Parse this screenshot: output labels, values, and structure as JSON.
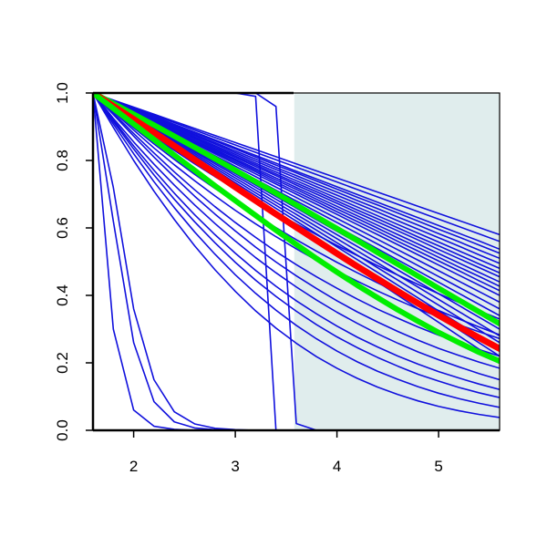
{
  "chart_data": {
    "type": "line",
    "title": "",
    "xlabel": "",
    "ylabel": "",
    "xlim": [
      1.6,
      5.6
    ],
    "ylim": [
      0.0,
      1.0
    ],
    "x_ticks": [
      2,
      3,
      4,
      5
    ],
    "x_tick_labels": [
      "2",
      "3",
      "4",
      "5"
    ],
    "y_ticks": [
      0.0,
      0.2,
      0.4,
      0.6,
      0.8,
      1.0
    ],
    "y_tick_labels": [
      "0.0",
      "0.2",
      "0.4",
      "0.6",
      "0.8",
      "1.0"
    ],
    "grid": false,
    "shaded_region": {
      "x_from": 3.58,
      "x_to": 5.6,
      "color": "#e0eded"
    },
    "colors": {
      "sample_curves": "#1010dd",
      "central_curve": "#ff0000",
      "band_curves": "#00ee00",
      "axis": "#000000"
    },
    "x": [
      1.6,
      1.8,
      2.0,
      2.2,
      2.4,
      2.6,
      2.8,
      3.0,
      3.2,
      3.4,
      3.6,
      3.8,
      4.0,
      4.2,
      4.4,
      4.6,
      4.8,
      5.0,
      5.2,
      5.4,
      5.6
    ],
    "series": [
      {
        "role": "sample",
        "values": [
          1.0,
          0.979,
          0.958,
          0.937,
          0.916,
          0.895,
          0.874,
          0.853,
          0.832,
          0.811,
          0.79,
          0.769,
          0.748,
          0.727,
          0.706,
          0.685,
          0.664,
          0.643,
          0.622,
          0.601,
          0.58
        ]
      },
      {
        "role": "sample",
        "values": [
          1.0,
          0.978,
          0.956,
          0.934,
          0.912,
          0.89,
          0.868,
          0.846,
          0.824,
          0.802,
          0.78,
          0.758,
          0.736,
          0.714,
          0.692,
          0.67,
          0.648,
          0.626,
          0.604,
          0.582,
          0.56
        ]
      },
      {
        "role": "sample",
        "values": [
          1.0,
          0.977,
          0.954,
          0.931,
          0.907,
          0.884,
          0.861,
          0.838,
          0.815,
          0.792,
          0.768,
          0.745,
          0.722,
          0.699,
          0.676,
          0.653,
          0.63,
          0.607,
          0.584,
          0.561,
          0.537
        ]
      },
      {
        "role": "sample",
        "values": [
          1.0,
          0.976,
          0.953,
          0.929,
          0.905,
          0.881,
          0.858,
          0.834,
          0.81,
          0.786,
          0.763,
          0.739,
          0.715,
          0.691,
          0.668,
          0.644,
          0.62,
          0.596,
          0.573,
          0.549,
          0.525
        ]
      },
      {
        "role": "sample",
        "values": [
          1.0,
          0.975,
          0.951,
          0.926,
          0.902,
          0.877,
          0.853,
          0.828,
          0.804,
          0.779,
          0.755,
          0.73,
          0.706,
          0.681,
          0.657,
          0.632,
          0.608,
          0.583,
          0.559,
          0.534,
          0.51
        ]
      },
      {
        "role": "sample",
        "values": [
          1.0,
          0.975,
          0.95,
          0.924,
          0.899,
          0.874,
          0.849,
          0.823,
          0.798,
          0.773,
          0.748,
          0.722,
          0.697,
          0.672,
          0.647,
          0.621,
          0.596,
          0.571,
          0.546,
          0.52,
          0.495
        ]
      },
      {
        "role": "sample",
        "values": [
          1.0,
          0.974,
          0.948,
          0.922,
          0.896,
          0.87,
          0.844,
          0.818,
          0.792,
          0.766,
          0.74,
          0.714,
          0.688,
          0.662,
          0.636,
          0.61,
          0.584,
          0.558,
          0.532,
          0.506,
          0.48
        ]
      },
      {
        "role": "sample",
        "values": [
          1.0,
          0.973,
          0.947,
          0.92,
          0.893,
          0.867,
          0.84,
          0.813,
          0.787,
          0.76,
          0.733,
          0.707,
          0.68,
          0.653,
          0.627,
          0.6,
          0.573,
          0.547,
          0.52,
          0.493,
          0.467
        ]
      },
      {
        "role": "sample",
        "values": [
          1.0,
          0.973,
          0.945,
          0.918,
          0.891,
          0.864,
          0.836,
          0.809,
          0.782,
          0.755,
          0.727,
          0.7,
          0.673,
          0.645,
          0.618,
          0.591,
          0.564,
          0.536,
          0.509,
          0.482,
          0.455
        ]
      },
      {
        "role": "sample",
        "values": [
          1.0,
          0.972,
          0.944,
          0.916,
          0.888,
          0.86,
          0.832,
          0.804,
          0.776,
          0.748,
          0.72,
          0.692,
          0.664,
          0.636,
          0.608,
          0.58,
          0.552,
          0.524,
          0.496,
          0.468,
          0.44
        ]
      },
      {
        "role": "sample",
        "values": [
          1.0,
          0.971,
          0.943,
          0.914,
          0.885,
          0.857,
          0.828,
          0.8,
          0.771,
          0.742,
          0.714,
          0.685,
          0.656,
          0.628,
          0.599,
          0.57,
          0.542,
          0.513,
          0.484,
          0.456,
          0.427
        ]
      },
      {
        "role": "sample",
        "values": [
          1.0,
          0.971,
          0.941,
          0.912,
          0.883,
          0.853,
          0.824,
          0.795,
          0.766,
          0.736,
          0.707,
          0.678,
          0.648,
          0.619,
          0.59,
          0.56,
          0.531,
          0.502,
          0.473,
          0.443,
          0.414
        ]
      },
      {
        "role": "sample",
        "values": [
          1.0,
          0.97,
          0.94,
          0.91,
          0.88,
          0.85,
          0.82,
          0.79,
          0.76,
          0.73,
          0.7,
          0.67,
          0.64,
          0.61,
          0.58,
          0.55,
          0.52,
          0.49,
          0.46,
          0.43,
          0.4
        ]
      },
      {
        "role": "sample",
        "values": [
          1.0,
          0.969,
          0.938,
          0.907,
          0.876,
          0.845,
          0.814,
          0.783,
          0.752,
          0.721,
          0.69,
          0.659,
          0.628,
          0.597,
          0.566,
          0.535,
          0.504,
          0.473,
          0.442,
          0.411,
          0.38
        ]
      },
      {
        "role": "sample",
        "values": [
          1.0,
          0.968,
          0.936,
          0.904,
          0.872,
          0.84,
          0.808,
          0.776,
          0.744,
          0.712,
          0.68,
          0.648,
          0.616,
          0.584,
          0.552,
          0.52,
          0.488,
          0.456,
          0.424,
          0.392,
          0.36
        ]
      },
      {
        "role": "sample",
        "values": [
          1.0,
          0.967,
          0.934,
          0.901,
          0.868,
          0.835,
          0.802,
          0.769,
          0.736,
          0.703,
          0.67,
          0.637,
          0.604,
          0.571,
          0.538,
          0.505,
          0.472,
          0.439,
          0.406,
          0.373,
          0.34
        ]
      },
      {
        "role": "sample",
        "values": [
          1.0,
          0.966,
          0.932,
          0.898,
          0.863,
          0.829,
          0.795,
          0.761,
          0.727,
          0.693,
          0.659,
          0.624,
          0.59,
          0.556,
          0.522,
          0.488,
          0.454,
          0.42,
          0.385,
          0.351,
          0.317
        ]
      },
      {
        "role": "sample",
        "values": [
          1.0,
          0.965,
          0.93,
          0.895,
          0.86,
          0.825,
          0.79,
          0.755,
          0.72,
          0.685,
          0.65,
          0.615,
          0.58,
          0.545,
          0.51,
          0.475,
          0.44,
          0.405,
          0.37,
          0.335,
          0.3
        ]
      },
      {
        "role": "sample",
        "values": [
          1.0,
          0.964,
          0.928,
          0.892,
          0.856,
          0.82,
          0.784,
          0.748,
          0.712,
          0.676,
          0.64,
          0.604,
          0.568,
          0.532,
          0.496,
          0.46,
          0.424,
          0.388,
          0.352,
          0.316,
          0.28
        ]
      },
      {
        "role": "sample",
        "values": [
          1.0,
          0.963,
          0.926,
          0.889,
          0.852,
          0.815,
          0.778,
          0.741,
          0.704,
          0.667,
          0.63,
          0.593,
          0.556,
          0.519,
          0.482,
          0.445,
          0.408,
          0.371,
          0.334,
          0.297,
          0.26
        ]
      },
      {
        "role": "sample",
        "values": [
          1.0,
          0.962,
          0.924,
          0.886,
          0.848,
          0.81,
          0.772,
          0.734,
          0.696,
          0.658,
          0.62,
          0.582,
          0.544,
          0.506,
          0.468,
          0.43,
          0.392,
          0.354,
          0.316,
          0.278,
          0.24
        ]
      },
      {
        "role": "sample",
        "values": [
          1.0,
          0.961,
          0.922,
          0.883,
          0.844,
          0.805,
          0.766,
          0.727,
          0.688,
          0.649,
          0.61,
          0.571,
          0.532,
          0.493,
          0.454,
          0.415,
          0.376,
          0.337,
          0.298,
          0.259,
          0.22
        ]
      },
      {
        "role": "sample",
        "values": [
          1.0,
          0.96,
          0.92,
          0.88,
          0.84,
          0.8,
          0.76,
          0.72,
          0.68,
          0.64,
          0.6,
          0.56,
          0.52,
          0.48,
          0.44,
          0.4,
          0.36,
          0.32,
          0.28,
          0.24,
          0.2
        ]
      },
      {
        "role": "sample",
        "values": [
          1.0,
          0.955,
          0.911,
          0.869,
          0.83,
          0.79,
          0.752,
          0.716,
          0.68,
          0.646,
          0.612,
          0.58,
          0.548,
          0.518,
          0.488,
          0.46,
          0.432,
          0.405,
          0.379,
          0.354,
          0.33
        ]
      },
      {
        "role": "sample",
        "values": [
          1.0,
          0.948,
          0.897,
          0.849,
          0.803,
          0.759,
          0.717,
          0.677,
          0.638,
          0.601,
          0.565,
          0.531,
          0.498,
          0.467,
          0.437,
          0.408,
          0.381,
          0.355,
          0.33,
          0.306,
          0.283
        ]
      },
      {
        "role": "sample",
        "values": [
          1.0,
          0.945,
          0.89,
          0.837,
          0.787,
          0.74,
          0.695,
          0.652,
          0.612,
          0.574,
          0.538,
          0.504,
          0.472,
          0.442,
          0.413,
          0.386,
          0.36,
          0.336,
          0.313,
          0.292,
          0.272
        ]
      },
      {
        "role": "sample",
        "values": [
          1.0,
          0.94,
          0.88,
          0.822,
          0.766,
          0.713,
          0.663,
          0.616,
          0.572,
          0.53,
          0.491,
          0.455,
          0.421,
          0.389,
          0.359,
          0.332,
          0.306,
          0.282,
          0.26,
          0.239,
          0.22
        ]
      },
      {
        "role": "sample",
        "values": [
          1.0,
          0.936,
          0.872,
          0.81,
          0.751,
          0.694,
          0.641,
          0.591,
          0.543,
          0.499,
          0.458,
          0.42,
          0.384,
          0.351,
          0.321,
          0.293,
          0.267,
          0.243,
          0.222,
          0.202,
          0.184
        ]
      },
      {
        "role": "sample",
        "values": [
          1.0,
          0.925,
          0.855,
          0.789,
          0.727,
          0.668,
          0.613,
          0.561,
          0.512,
          0.467,
          0.425,
          0.386,
          0.35,
          0.317,
          0.286,
          0.258,
          0.232,
          0.209,
          0.188,
          0.168,
          0.15
        ]
      },
      {
        "role": "sample",
        "values": [
          1.0,
          0.92,
          0.843,
          0.771,
          0.703,
          0.639,
          0.58,
          0.525,
          0.474,
          0.427,
          0.384,
          0.345,
          0.309,
          0.276,
          0.247,
          0.22,
          0.196,
          0.174,
          0.155,
          0.137,
          0.121
        ]
      },
      {
        "role": "sample",
        "values": [
          1.0,
          0.915,
          0.834,
          0.757,
          0.685,
          0.618,
          0.556,
          0.498,
          0.445,
          0.397,
          0.353,
          0.313,
          0.277,
          0.245,
          0.216,
          0.19,
          0.166,
          0.146,
          0.127,
          0.111,
          0.097
        ]
      },
      {
        "role": "sample",
        "values": [
          1.0,
          0.908,
          0.82,
          0.737,
          0.66,
          0.588,
          0.522,
          0.461,
          0.406,
          0.356,
          0.311,
          0.271,
          0.235,
          0.203,
          0.175,
          0.151,
          0.129,
          0.11,
          0.094,
          0.08,
          0.068
        ]
      },
      {
        "role": "sample",
        "values": [
          1.0,
          0.898,
          0.8,
          0.709,
          0.625,
          0.547,
          0.476,
          0.412,
          0.354,
          0.303,
          0.258,
          0.218,
          0.184,
          0.154,
          0.128,
          0.106,
          0.087,
          0.071,
          0.058,
          0.047,
          0.038
        ]
      },
      {
        "role": "sample",
        "values": [
          1.0,
          0.62,
          0.26,
          0.085,
          0.025,
          0.007,
          0.002,
          0.0,
          0.0,
          0.0,
          0.0,
          0.0,
          0.0,
          0.0,
          0.0,
          0.0,
          0.0,
          0.0,
          0.0,
          0.0,
          0.0
        ]
      },
      {
        "role": "sample",
        "values": [
          1.0,
          0.72,
          0.36,
          0.15,
          0.055,
          0.019,
          0.006,
          0.002,
          0.0,
          0.0,
          0.0,
          0.0,
          0.0,
          0.0,
          0.0,
          0.0,
          0.0,
          0.0,
          0.0,
          0.0,
          0.0
        ]
      },
      {
        "role": "sample",
        "values": [
          1.0,
          0.3,
          0.06,
          0.012,
          0.003,
          0.0,
          0.0,
          0.0,
          0.0,
          0.0,
          0.0,
          0.0,
          0.0,
          0.0,
          0.0,
          0.0,
          0.0,
          0.0,
          0.0,
          0.0,
          0.0
        ]
      },
      {
        "role": "sample",
        "values": [
          1.0,
          1.0,
          1.0,
          1.0,
          1.0,
          1.0,
          1.0,
          1.0,
          0.99,
          0.0,
          0.0,
          0.0,
          0.0,
          0.0,
          0.0,
          0.0,
          0.0,
          0.0,
          0.0,
          0.0,
          0.0
        ]
      },
      {
        "role": "sample",
        "values": [
          1.0,
          1.0,
          1.0,
          1.0,
          1.0,
          1.0,
          1.0,
          1.0,
          1.0,
          0.96,
          0.02,
          0.0,
          0.0,
          0.0,
          0.0,
          0.0,
          0.0,
          0.0,
          0.0,
          0.0,
          0.0
        ]
      },
      {
        "role": "band",
        "values": [
          1.0,
          0.969,
          0.937,
          0.905,
          0.872,
          0.839,
          0.805,
          0.771,
          0.737,
          0.703,
          0.668,
          0.633,
          0.598,
          0.563,
          0.527,
          0.492,
          0.457,
          0.421,
          0.386,
          0.351,
          0.316
        ]
      },
      {
        "role": "central",
        "values": [
          1.0,
          0.961,
          0.922,
          0.883,
          0.843,
          0.802,
          0.762,
          0.721,
          0.681,
          0.641,
          0.602,
          0.563,
          0.524,
          0.486,
          0.449,
          0.412,
          0.376,
          0.341,
          0.307,
          0.274,
          0.242
        ]
      },
      {
        "role": "band",
        "values": [
          1.0,
          0.954,
          0.908,
          0.862,
          0.816,
          0.771,
          0.725,
          0.681,
          0.637,
          0.593,
          0.551,
          0.509,
          0.469,
          0.43,
          0.393,
          0.357,
          0.323,
          0.29,
          0.26,
          0.231,
          0.205
        ]
      }
    ]
  }
}
